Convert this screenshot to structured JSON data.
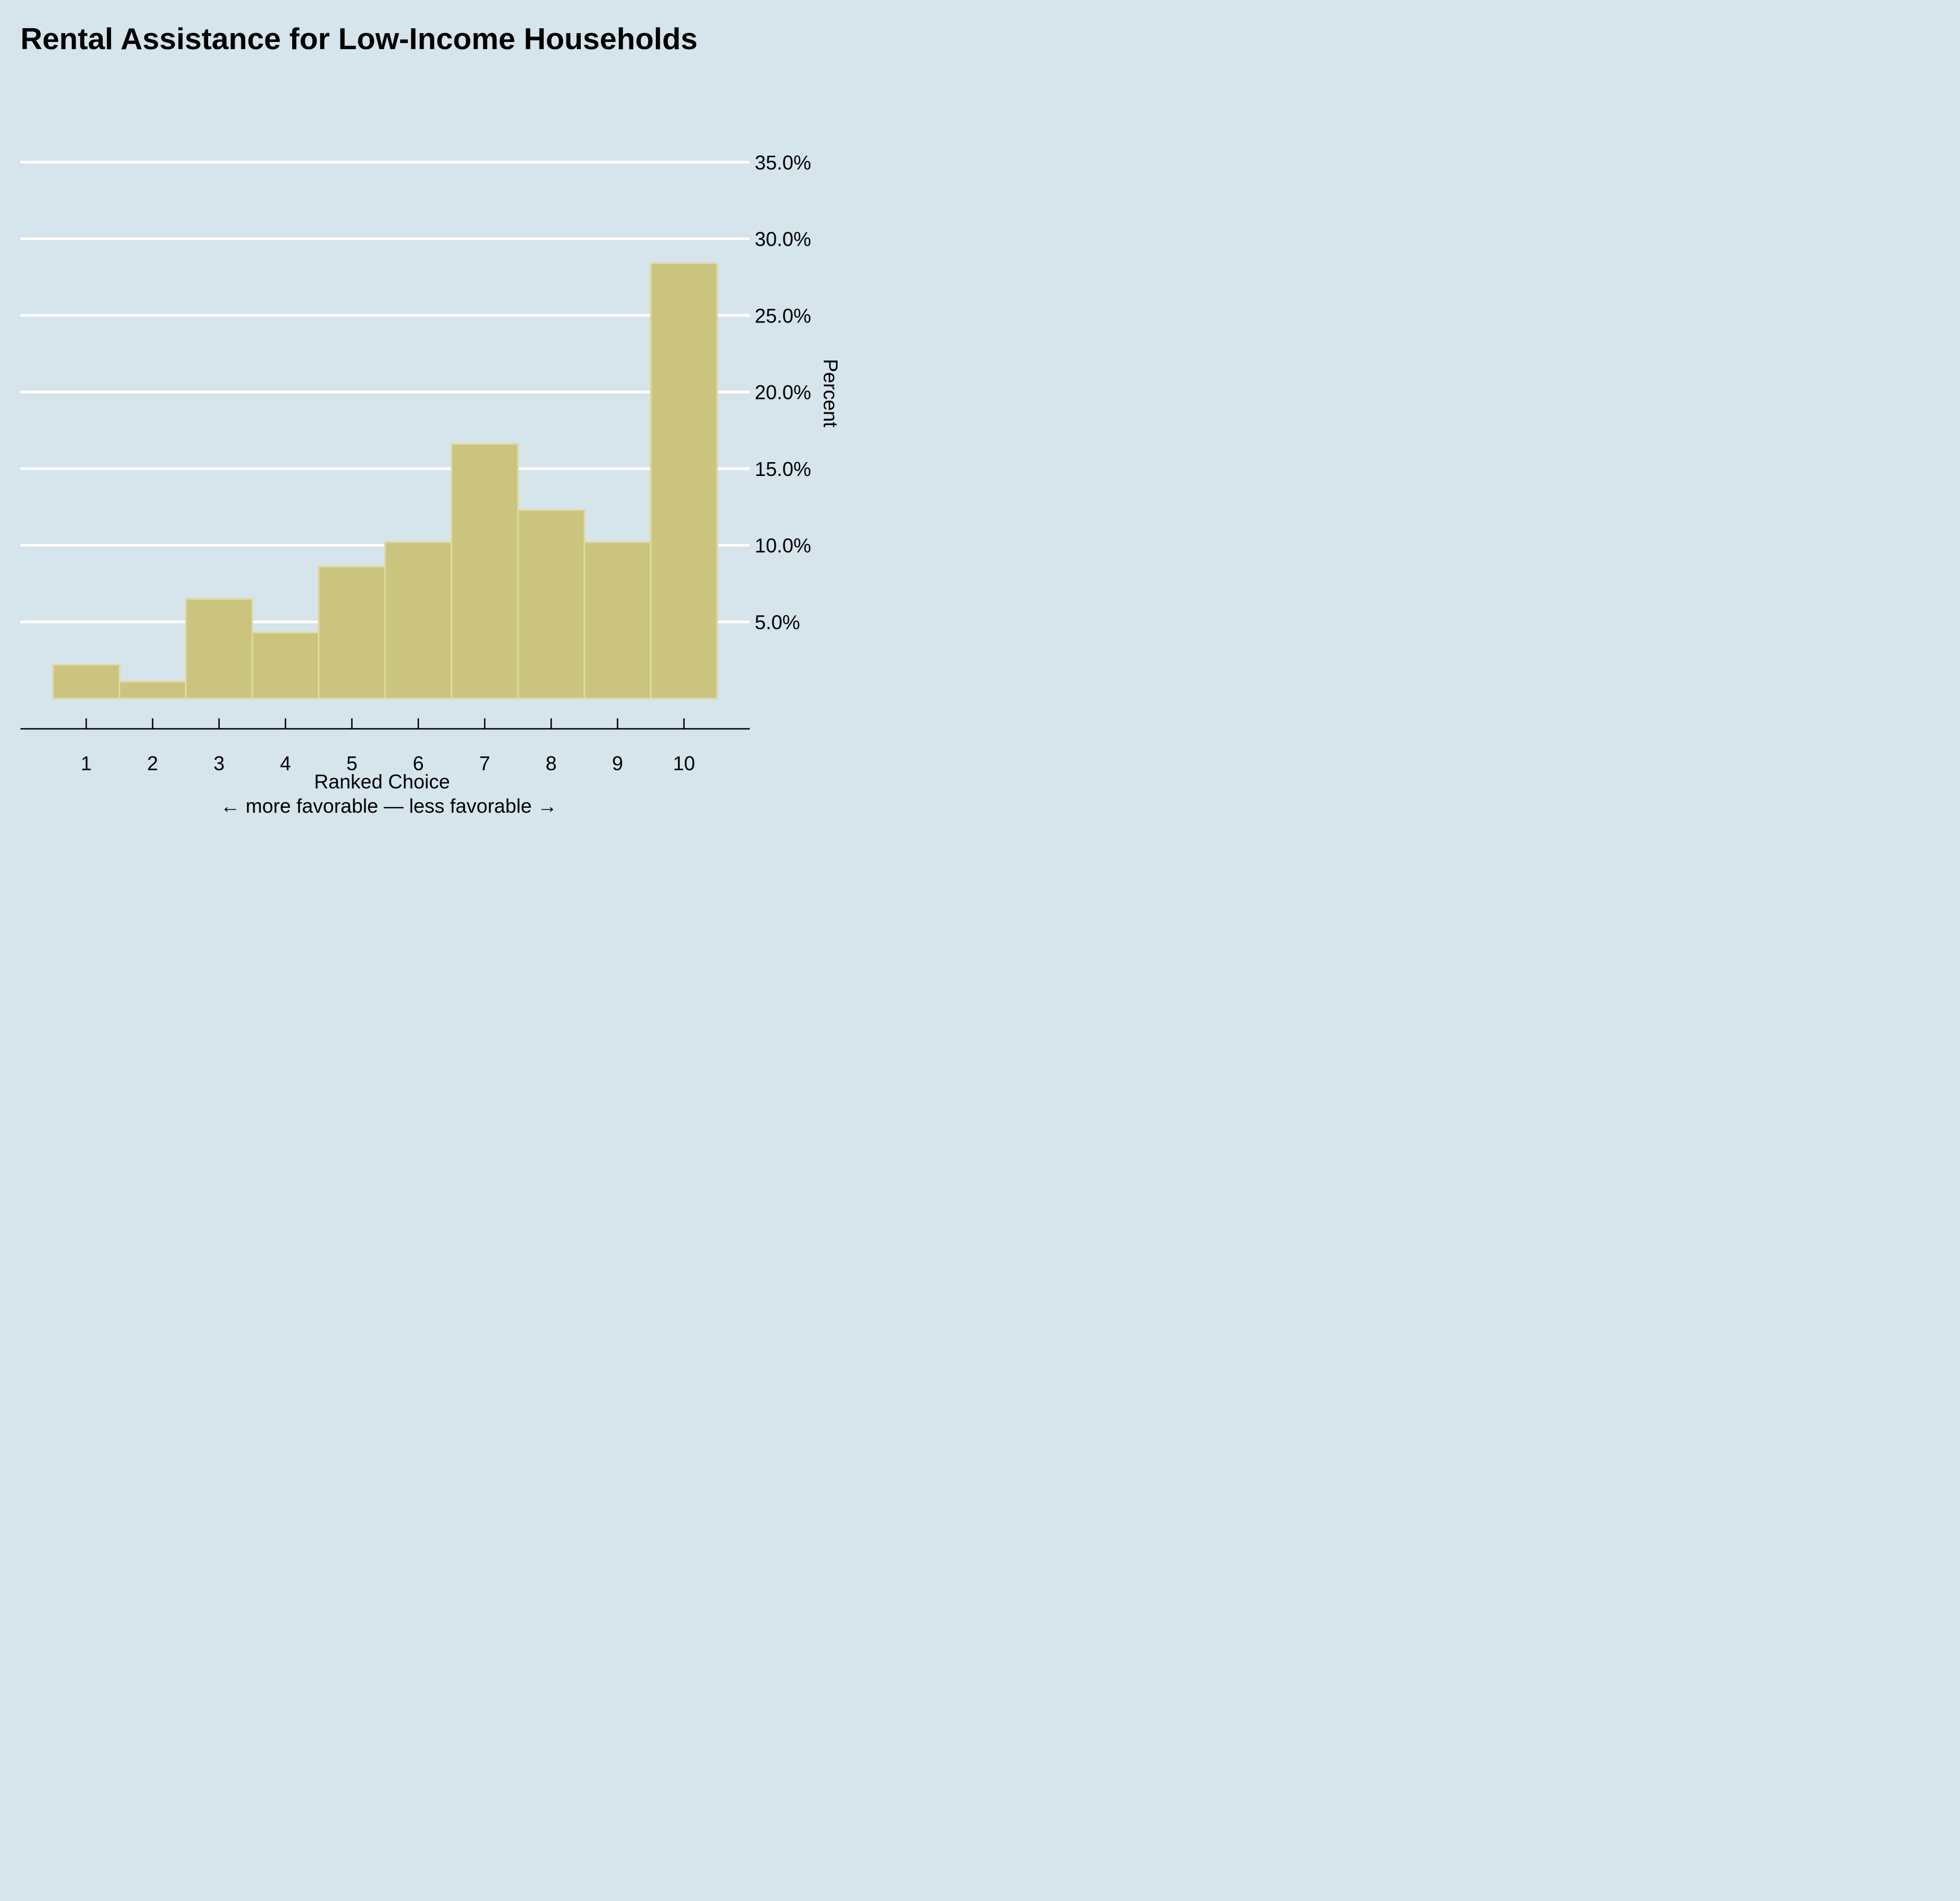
{
  "colors": {
    "background": "#d6e4eb",
    "bar_fill": "#cac47f",
    "bar_stroke": "#e0d9a0",
    "grid": "#ffffff",
    "axis": "#000000"
  },
  "chart_data": {
    "type": "bar",
    "title": "Rental Assistance for Low-Income Households",
    "xlabel": "Ranked Choice",
    "xlabel_note": "← more favorable — less favorable →",
    "ylabel": "Percent",
    "y_axis_side": "right",
    "grid": "horizontal",
    "ylim": [
      0,
      35
    ],
    "yticks": [
      5,
      10,
      15,
      20,
      25,
      30,
      35
    ],
    "ytick_labels": [
      "5.0%",
      "10.0%",
      "15.0%",
      "20.0%",
      "25.0%",
      "30.0%",
      "35.0%"
    ],
    "categories": [
      "1",
      "2",
      "3",
      "4",
      "5",
      "6",
      "7",
      "8",
      "9",
      "10"
    ],
    "values": [
      2.2,
      1.1,
      6.5,
      4.3,
      8.6,
      10.2,
      16.6,
      12.3,
      10.2,
      28.4
    ]
  }
}
